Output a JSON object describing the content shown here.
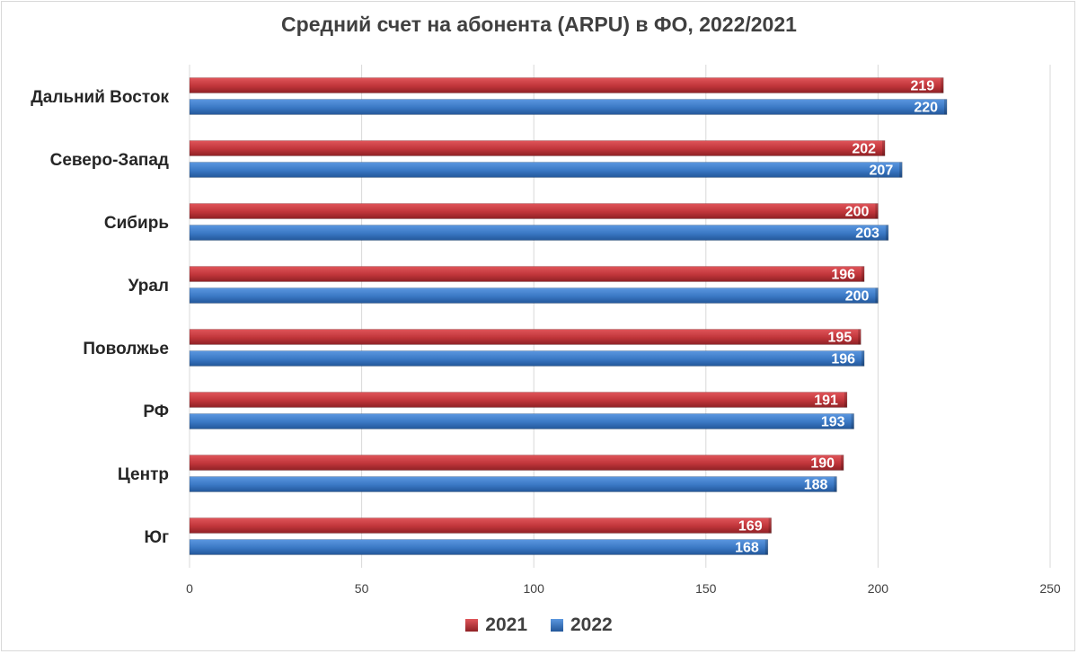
{
  "chart_data": {
    "type": "bar",
    "orientation": "horizontal",
    "title": "Средний счет на абонента (ARPU) в ФО, 2022/2021",
    "categories": [
      "Дальний Восток",
      "Северо-Запад",
      "Сибирь",
      "Урал",
      "Поволжье",
      "РФ",
      "Центр",
      "Юг"
    ],
    "series": [
      {
        "name": "2021",
        "color": "#c0353a",
        "values": [
          219,
          202,
          200,
          196,
          195,
          191,
          190,
          169
        ]
      },
      {
        "name": "2022",
        "color": "#3a78c4",
        "values": [
          220,
          207,
          203,
          200,
          196,
          193,
          188,
          168
        ]
      }
    ],
    "xlim": [
      0,
      250
    ],
    "xticks": [
      0,
      50,
      100,
      150,
      200,
      250
    ],
    "grid": true,
    "legend_position": "bottom",
    "data_labels": true
  }
}
